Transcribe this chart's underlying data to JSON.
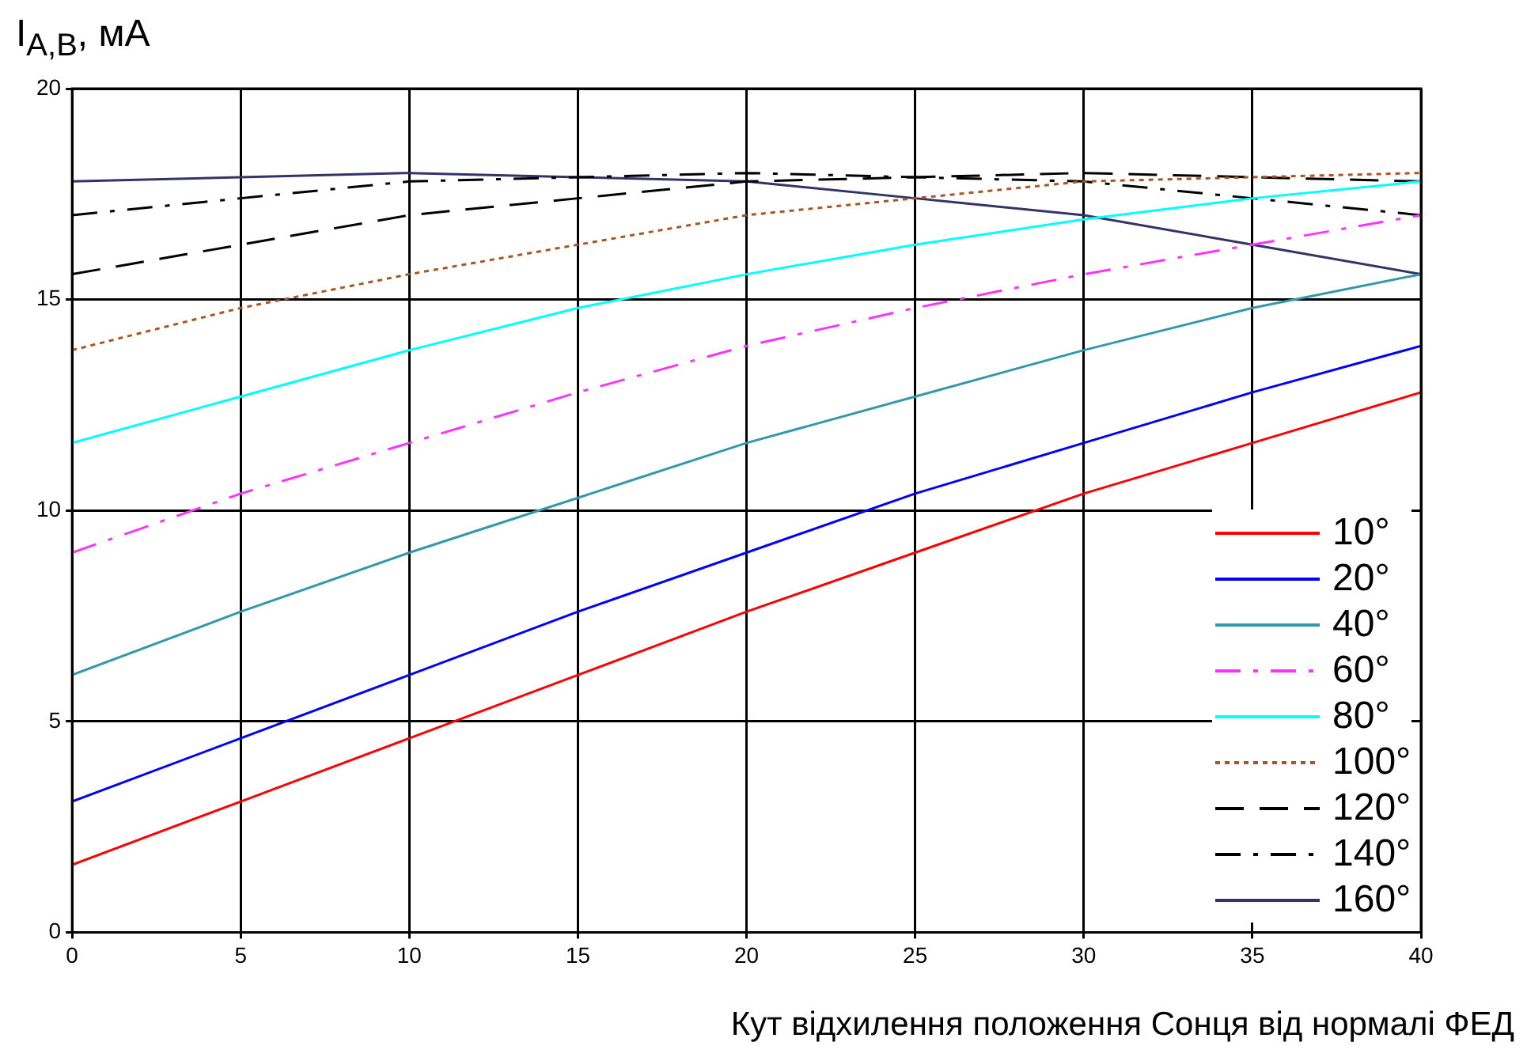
{
  "chart_data": {
    "type": "line",
    "xlabel": "Кут відхилення положення Сонця від нормалі ФЕД",
    "ylabel": "I$_{A,B}$, мА",
    "x": [
      0,
      5,
      10,
      15,
      20,
      25,
      30,
      35,
      40
    ],
    "xlim": [
      0,
      40
    ],
    "xticks": [
      0,
      5,
      10,
      15,
      20,
      25,
      30,
      35,
      40
    ],
    "ylim": [
      0,
      20
    ],
    "yticks": [
      0,
      5,
      10,
      15,
      20
    ],
    "grid": true,
    "legend": "bottom right",
    "marker": "none",
    "series": [
      {
        "name": "10°",
        "color": "#ff0000",
        "line_style": "solid",
        "values": [
          1.6,
          3.1,
          4.6,
          6.1,
          7.6,
          9.0,
          10.4,
          11.6,
          12.8
        ]
      },
      {
        "name": "20°",
        "color": "#0000ff",
        "line_style": "solid",
        "values": [
          3.1,
          4.6,
          6.1,
          7.6,
          9.0,
          10.4,
          11.6,
          12.8,
          13.9
        ]
      },
      {
        "name": "40°",
        "color": "#3399aa",
        "line_style": "solid",
        "values": [
          6.1,
          7.6,
          9.0,
          10.3,
          11.6,
          12.7,
          13.8,
          14.8,
          15.6
        ]
      },
      {
        "name": "60°",
        "color": "#ff33ff",
        "line_style": "dashdot",
        "values": [
          9.0,
          10.4,
          11.6,
          12.8,
          13.9,
          14.8,
          15.6,
          16.3,
          17.0
        ]
      },
      {
        "name": "80°",
        "color": "#00ffff",
        "line_style": "solid",
        "values": [
          11.6,
          12.7,
          13.8,
          14.8,
          15.6,
          16.3,
          16.9,
          17.4,
          17.8
        ]
      },
      {
        "name": "100°",
        "color": "#aa5522",
        "line_style": "dotted",
        "values": [
          13.8,
          14.8,
          15.6,
          16.3,
          17.0,
          17.4,
          17.8,
          17.9,
          18.0
        ]
      },
      {
        "name": "120°",
        "color": "#000000",
        "line_style": "dashed",
        "values": [
          15.6,
          16.3,
          17.0,
          17.4,
          17.8,
          17.9,
          18.0,
          17.9,
          17.8
        ]
      },
      {
        "name": "140°",
        "color": "#000000",
        "line_style": "dashdot",
        "values": [
          17.0,
          17.4,
          17.8,
          17.9,
          18.0,
          17.9,
          17.8,
          17.4,
          17.0
        ]
      },
      {
        "name": "160°",
        "color": "#333366",
        "line_style": "solid",
        "values": [
          17.8,
          17.9,
          18.0,
          17.9,
          17.8,
          17.4,
          17.0,
          16.3,
          15.6
        ]
      }
    ]
  }
}
